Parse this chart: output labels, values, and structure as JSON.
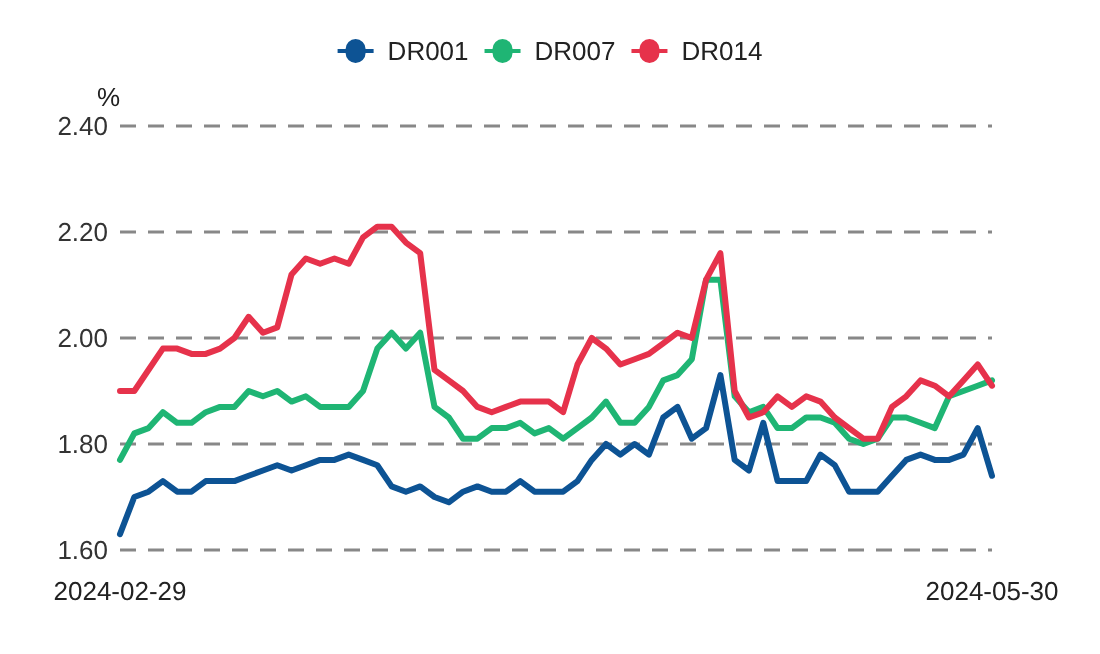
{
  "chart_data": {
    "type": "line",
    "ylabel": "%",
    "categories": [
      "2024-02-29",
      null,
      null,
      null,
      null,
      null,
      null,
      null,
      null,
      null,
      null,
      null,
      null,
      null,
      null,
      null,
      null,
      null,
      null,
      null,
      null,
      null,
      null,
      null,
      null,
      null,
      null,
      null,
      null,
      null,
      null,
      null,
      null,
      null,
      null,
      null,
      null,
      null,
      null,
      null,
      null,
      null,
      null,
      null,
      null,
      null,
      null,
      null,
      null,
      null,
      null,
      null,
      null,
      null,
      null,
      null,
      null,
      null,
      null,
      null,
      null,
      "2024-05-30"
    ],
    "series": [
      {
        "name": "DR001",
        "color": "#0d5394",
        "values": [
          1.63,
          1.7,
          1.71,
          1.73,
          1.71,
          1.71,
          1.73,
          1.73,
          1.73,
          1.74,
          1.75,
          1.76,
          1.75,
          1.76,
          1.77,
          1.77,
          1.78,
          1.77,
          1.76,
          1.72,
          1.71,
          1.72,
          1.7,
          1.69,
          1.71,
          1.72,
          1.71,
          1.71,
          1.73,
          1.71,
          1.71,
          1.71,
          1.73,
          1.77,
          1.8,
          1.78,
          1.8,
          1.78,
          1.85,
          1.87,
          1.81,
          1.83,
          1.93,
          1.77,
          1.75,
          1.84,
          1.73,
          1.73,
          1.73,
          1.78,
          1.76,
          1.71,
          1.71,
          1.71,
          1.74,
          1.77,
          1.78,
          1.77,
          1.77,
          1.78,
          1.83,
          1.74
        ]
      },
      {
        "name": "DR007",
        "color": "#1fb574",
        "values": [
          1.77,
          1.82,
          1.83,
          1.86,
          1.84,
          1.84,
          1.86,
          1.87,
          1.87,
          1.9,
          1.89,
          1.9,
          1.88,
          1.89,
          1.87,
          1.87,
          1.87,
          1.9,
          1.98,
          2.01,
          1.98,
          2.01,
          1.87,
          1.85,
          1.81,
          1.81,
          1.83,
          1.83,
          1.84,
          1.82,
          1.83,
          1.81,
          1.83,
          1.85,
          1.88,
          1.84,
          1.84,
          1.87,
          1.92,
          1.93,
          1.96,
          2.11,
          2.11,
          1.89,
          1.86,
          1.87,
          1.83,
          1.83,
          1.85,
          1.85,
          1.84,
          1.81,
          1.8,
          1.81,
          1.85,
          1.85,
          1.84,
          1.83,
          1.89,
          1.9,
          1.91,
          1.92
        ]
      },
      {
        "name": "DR014",
        "color": "#e6324b",
        "values": [
          1.9,
          1.9,
          1.94,
          1.98,
          1.98,
          1.97,
          1.97,
          1.98,
          2.0,
          2.04,
          2.01,
          2.02,
          2.12,
          2.15,
          2.14,
          2.15,
          2.14,
          2.19,
          2.21,
          2.21,
          2.18,
          2.16,
          1.94,
          1.92,
          1.9,
          1.87,
          1.86,
          1.87,
          1.88,
          1.88,
          1.88,
          1.86,
          1.95,
          2.0,
          1.98,
          1.95,
          1.96,
          1.97,
          1.99,
          2.01,
          2.0,
          2.11,
          2.16,
          1.9,
          1.85,
          1.86,
          1.89,
          1.87,
          1.89,
          1.88,
          1.85,
          1.83,
          1.81,
          1.81,
          1.87,
          1.89,
          1.92,
          1.91,
          1.89,
          1.92,
          1.95,
          1.91
        ]
      }
    ],
    "ylim": [
      1.6,
      2.4
    ],
    "yticks": [
      {
        "value": 1.6,
        "label": "1.60"
      },
      {
        "value": 1.8,
        "label": "1.80"
      },
      {
        "value": 2.0,
        "label": "2.00"
      },
      {
        "value": 2.2,
        "label": "2.20"
      },
      {
        "value": 2.4,
        "label": "2.40"
      }
    ],
    "grid": "y",
    "legend": "top",
    "marker": "none",
    "line_style": "solid"
  }
}
